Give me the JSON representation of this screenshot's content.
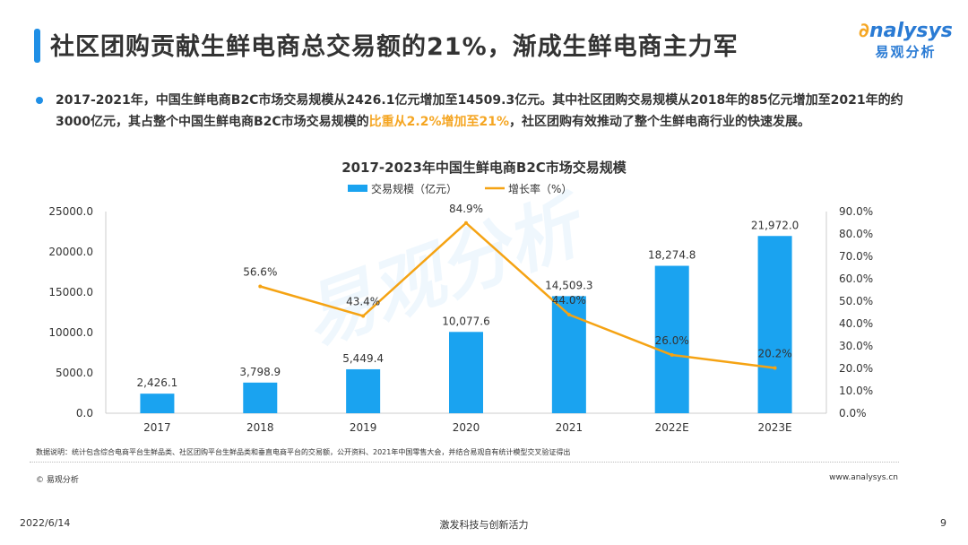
{
  "header": {
    "title": "社区团购贡献生鲜电商总交易额的21%，渐成生鲜电商主力军",
    "logo_en": "nalysys",
    "logo_cn": "易观分析"
  },
  "summary": {
    "part1": "2017-2021年，中国生鲜电商B2C市场交易规模从2426.1亿元增加至14509.3亿元。其中社区团购交易规模从2018年的85亿元增加至2021年的约3000亿元，其占整个中国生鲜电商B2C市场交易规模的",
    "highlight": "比重从2.2%增加至21%",
    "part2": "，社区团购有效推动了整个生鲜电商行业的快速发展。"
  },
  "chart_data": {
    "type": "bar+line",
    "title": "2017-2023年中国生鲜电商B2C市场交易规模",
    "categories": [
      "2017",
      "2018",
      "2019",
      "2020",
      "2021",
      "2022E",
      "2023E"
    ],
    "series": [
      {
        "name": "交易规模（亿元）",
        "type": "bar",
        "axis": "left",
        "color": "#1aa3f0",
        "values": [
          2426.1,
          3798.9,
          5449.4,
          10077.6,
          14509.3,
          18274.8,
          21972.0
        ],
        "labels": [
          "2,426.1",
          "3,798.9",
          "5,449.4",
          "10,077.6",
          "14,509.3",
          "18,274.8",
          "21,972.0"
        ]
      },
      {
        "name": "增长率（%）",
        "type": "line",
        "axis": "right",
        "color": "#f5a313",
        "values": [
          null,
          56.6,
          43.4,
          84.9,
          44.0,
          26.0,
          20.2
        ],
        "labels": [
          "",
          "56.6%",
          "43.4%",
          "84.9%",
          "44.0%",
          "26.0%",
          "20.2%"
        ]
      }
    ],
    "left_axis": {
      "min": 0,
      "max": 25000,
      "ticks": [
        "0.0",
        "5000.0",
        "10000.0",
        "15000.0",
        "20000.0",
        "25000.0"
      ]
    },
    "right_axis": {
      "min": 0,
      "max": 90,
      "ticks": [
        "0.0%",
        "10.0%",
        "20.0%",
        "30.0%",
        "40.0%",
        "50.0%",
        "60.0%",
        "70.0%",
        "80.0%",
        "90.0%"
      ]
    },
    "legend": "top",
    "grid": false
  },
  "watermark": "易观分析",
  "footer": {
    "note": "数据说明：统计包含综合电商平台生鲜品类、社区团购平台生鲜品类和垂直电商平台的交易额，公开资料、2021年中国零售大会，并结合易观自有统计模型交叉验证得出",
    "copyright": "© 易观分析",
    "url": "www.analysys.cn",
    "date": "2022/6/14",
    "slogan": "激发科技与创新活力",
    "page": "9"
  }
}
